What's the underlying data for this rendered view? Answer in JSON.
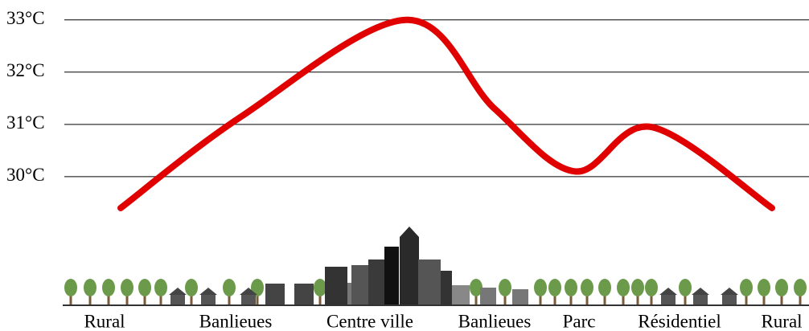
{
  "chart_data": {
    "type": "line",
    "categories": [
      "Rural",
      "Banlieues",
      "Centre ville",
      "Banlieues",
      "Parc",
      "Résidentiel",
      "Rural"
    ],
    "series": [
      {
        "color": "#e00000",
        "values": [
          29.4,
          31.15,
          33.0,
          31.3,
          30.1,
          30.95,
          29.4
        ]
      }
    ],
    "ylim": [
      28.5,
      33.38
    ],
    "yticks": [
      {
        "value": 30,
        "label": "30°C"
      },
      {
        "value": 31,
        "label": "31°C"
      },
      {
        "value": 32,
        "label": "32°C"
      },
      {
        "value": 33,
        "label": "33°C"
      }
    ],
    "grid": true
  }
}
